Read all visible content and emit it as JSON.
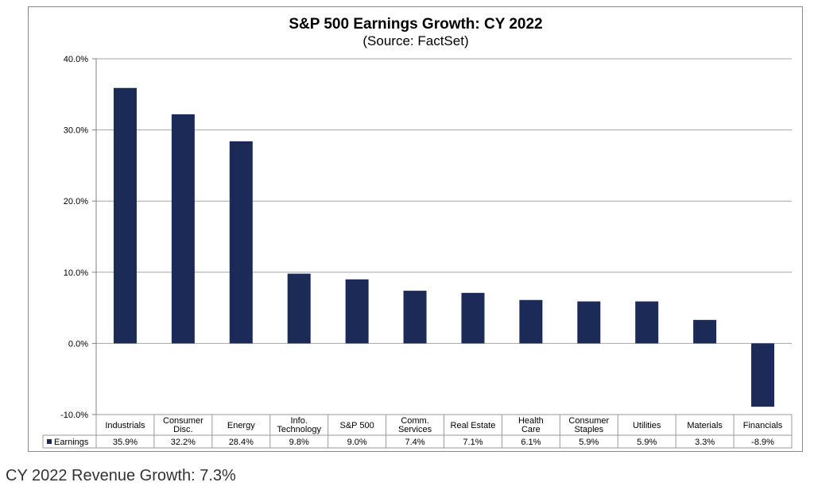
{
  "chart_data": {
    "type": "bar",
    "title": "S&P 500 Earnings Growth: CY 2022",
    "subtitle": "(Source: FactSet)",
    "categories": [
      [
        "Industrials"
      ],
      [
        "Consumer",
        "Disc."
      ],
      [
        "Energy"
      ],
      [
        "Info.",
        "Technology"
      ],
      [
        "S&P 500"
      ],
      [
        "Comm.",
        "Services"
      ],
      [
        "Real Estate"
      ],
      [
        "Health",
        "Care"
      ],
      [
        "Consumer",
        "Staples"
      ],
      [
        "Utilities"
      ],
      [
        "Materials"
      ],
      [
        "Financials"
      ]
    ],
    "series": [
      {
        "name": "Earnings",
        "values": [
          35.9,
          32.2,
          28.4,
          9.8,
          9.0,
          7.4,
          7.1,
          6.1,
          5.9,
          5.9,
          3.3,
          -8.9
        ],
        "labels": [
          "35.9%",
          "32.2%",
          "28.4%",
          "9.8%",
          "9.0%",
          "7.4%",
          "7.1%",
          "6.1%",
          "5.9%",
          "5.9%",
          "3.3%",
          "-8.9%"
        ],
        "color": "#1b2a57"
      }
    ],
    "ylim": [
      -10,
      40
    ],
    "yticks": [
      40,
      30,
      20,
      10,
      0,
      -10
    ],
    "ytick_labels": [
      "40.0%",
      "30.0%",
      "20.0%",
      "10.0%",
      "0.0%",
      "-10.0%"
    ],
    "grid": true,
    "data_table": true
  },
  "footer": {
    "note": "CY 2022 Revenue Growth: 7.3%"
  }
}
